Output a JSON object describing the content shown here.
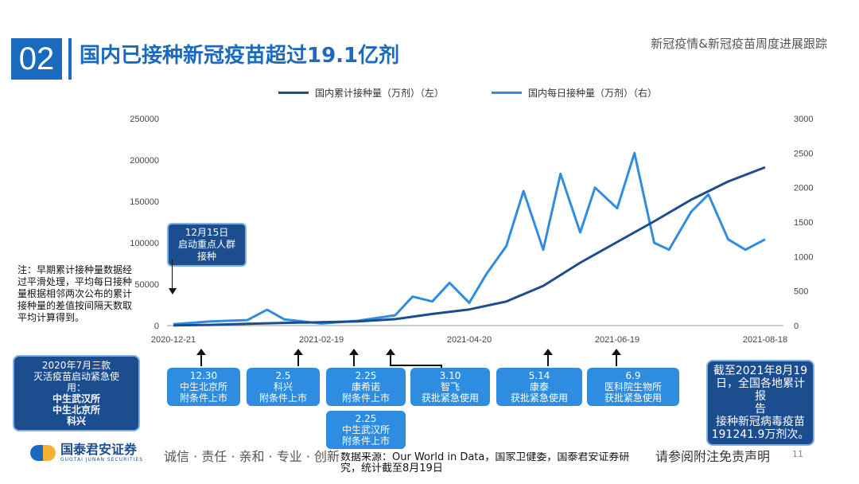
{
  "header": {
    "section_number": "02",
    "title": "国内已接种新冠疫苗超过19.1亿剂",
    "top_right": "新冠疫情&新冠疫苗周度进展跟踪"
  },
  "colors": {
    "brand": "#1a6bbf",
    "cumulative_line": "#1c4d8f",
    "daily_line": "#2e8de0",
    "dark_box": "#1c4d8f",
    "light_box": "#2e8de0"
  },
  "chart_data": {
    "type": "line",
    "title": "",
    "legend_placement": "top",
    "series": [
      {
        "name": "国内累计接种量（万剂）（左）",
        "axis": "left",
        "x": [
          "2020-12-21",
          "2021-01-05",
          "2021-01-20",
          "2021-02-04",
          "2021-02-19",
          "2021-03-06",
          "2021-03-21",
          "2021-04-05",
          "2021-04-20",
          "2021-05-05",
          "2021-05-20",
          "2021-06-04",
          "2021-06-19",
          "2021-07-04",
          "2021-07-19",
          "2021-08-03",
          "2021-08-18"
        ],
        "values": [
          300,
          900,
          2200,
          3300,
          4000,
          5000,
          7800,
          14000,
          19500,
          29000,
          48000,
          76000,
          101000,
          126000,
          152000,
          174000,
          191242
        ]
      },
      {
        "name": "国内每日接种量（万剂）（右）",
        "axis": "right",
        "x": [
          "2020-12-21",
          "2021-01-05",
          "2021-01-20",
          "2021-01-28",
          "2021-02-04",
          "2021-02-19",
          "2021-03-06",
          "2021-03-21",
          "2021-03-28",
          "2021-04-05",
          "2021-04-12",
          "2021-04-20",
          "2021-04-27",
          "2021-05-05",
          "2021-05-12",
          "2021-05-20",
          "2021-05-27",
          "2021-06-04",
          "2021-06-10",
          "2021-06-19",
          "2021-06-26",
          "2021-07-04",
          "2021-07-10",
          "2021-07-19",
          "2021-07-26",
          "2021-08-03",
          "2021-08-10",
          "2021-08-18"
        ],
        "values": [
          20,
          60,
          80,
          230,
          90,
          30,
          70,
          150,
          420,
          350,
          620,
          330,
          750,
          1150,
          1950,
          1100,
          2200,
          1350,
          2000,
          1700,
          2500,
          1200,
          1100,
          1650,
          1900,
          1250,
          1100,
          1250
        ]
      }
    ],
    "x_ticks": [
      "2020-12-21",
      "2021-02-19",
      "2021-04-20",
      "2021-06-19",
      "2021-08-18"
    ],
    "y_left": {
      "ticks": [
        "250000",
        "200000",
        "150000",
        "100000",
        "50000",
        "0"
      ],
      "ylim": [
        0,
        250000
      ]
    },
    "y_right": {
      "ticks": [
        "3000",
        "2500",
        "2000",
        "1500",
        "1000",
        "500",
        "0"
      ],
      "ylim": [
        0,
        3000
      ]
    },
    "grid": false
  },
  "note": "注：早期累计接种量数据经过平滑处理，平均每日接种量根据相邻两次公布的累计接种量的差值按间隔天数取平均计算得到。",
  "callout": {
    "lines": [
      "12月15日",
      "启动重点人群",
      "接种"
    ]
  },
  "approval_left": {
    "lines": [
      "2020年7月三款",
      "灭活疫苗启动紧急使",
      "用："
    ],
    "bold_lines": [
      "中生武汉所",
      "中生北京所",
      "科兴"
    ]
  },
  "milestones": [
    {
      "date": "12.30",
      "text": [
        "中生北京所",
        "附条件上市"
      ]
    },
    {
      "date": "2.5",
      "text": [
        "科兴",
        "附条件上市"
      ]
    },
    {
      "date": "2.25",
      "text": [
        "康希诺",
        "附条件上市"
      ]
    },
    {
      "date": "3.10",
      "text": [
        "智飞",
        "获批紧急使用"
      ]
    },
    {
      "date": "5.14",
      "text": [
        "康泰",
        "获批紧急使用"
      ]
    },
    {
      "date": "6.9",
      "text": [
        "医科院生物所",
        "获批紧急使用"
      ]
    },
    {
      "date": "2.25",
      "text": [
        "中生武汉所",
        "附条件上市"
      ]
    }
  ],
  "summary_box": {
    "lines": [
      "截至2021年8月19",
      "日，全国各地累计报",
      "告",
      "接种新冠病毒疫苗",
      "191241.9万剂次。"
    ]
  },
  "footer": {
    "logo_text": "国泰君安证券",
    "logo_sub": "GUOTAI JUNAN SECURITIES",
    "slogan": "诚信 · 责任 · 亲和 · 专业 · 创新",
    "source": "数据来源：Our World in Data，国家卫健委，国泰君安证券研究，统计截至8月19日",
    "disclaimer": "请参阅附注免责声明",
    "page": "11"
  }
}
